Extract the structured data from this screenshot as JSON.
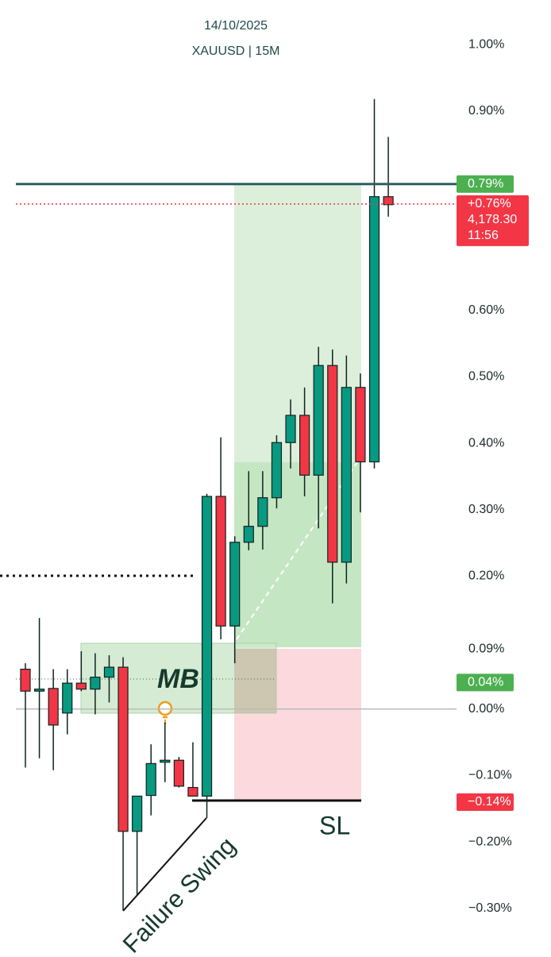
{
  "chart_data": {
    "type": "candlestick",
    "date": "14/10/2025",
    "title": "XAUUSD | 15M",
    "categories": [
      null,
      null,
      null,
      null,
      null,
      null,
      null,
      null,
      null,
      null,
      null,
      null,
      null,
      null,
      null,
      null,
      null,
      null,
      null,
      null,
      null,
      null,
      null,
      null,
      null,
      null,
      null
    ],
    "open": [
      0.06,
      0.027,
      0.031,
      -0.006,
      0.039,
      0.03,
      0.048,
      0.063,
      -0.184,
      -0.13,
      -0.08,
      -0.077,
      -0.118,
      -0.131,
      0.32,
      0.125,
      0.251,
      0.275,
      0.318,
      0.401,
      0.442,
      0.352,
      0.517,
      0.221,
      0.484,
      0.372,
      0.771
    ],
    "high": [
      0.069,
      0.137,
      0.06,
      0.06,
      0.087,
      0.084,
      0.081,
      0.078,
      -0.131,
      -0.053,
      -0.02,
      -0.072,
      -0.05,
      0.324,
      0.409,
      0.26,
      0.358,
      0.358,
      0.412,
      0.466,
      0.484,
      0.545,
      0.541,
      0.532,
      0.505,
      0.918,
      0.861
    ],
    "low": [
      -0.088,
      -0.074,
      -0.092,
      -0.038,
      0.027,
      -0.008,
      0.01,
      -0.303,
      -0.28,
      -0.16,
      -0.11,
      -0.118,
      -0.131,
      -0.164,
      0.105,
      0.069,
      0.239,
      0.24,
      0.302,
      0.362,
      0.32,
      0.272,
      0.159,
      0.189,
      0.296,
      0.362,
      0.741
    ],
    "close": [
      0.027,
      0.03,
      -0.024,
      0.039,
      0.03,
      0.048,
      0.063,
      -0.184,
      -0.131,
      -0.082,
      -0.077,
      -0.116,
      -0.131,
      0.32,
      0.125,
      0.251,
      0.275,
      0.318,
      0.401,
      0.442,
      0.352,
      0.517,
      0.221,
      0.484,
      0.372,
      0.771,
      0.759
    ],
    "up_color": "#089981",
    "down_color": "#f23645",
    "ylim": [
      -0.348,
      1.067
    ],
    "yticks": [
      {
        "value": 1,
        "label": "1.00%"
      },
      {
        "value": 0.9,
        "label": "0.90%"
      },
      {
        "value": 0.6,
        "label": "0.60%"
      },
      {
        "value": 0.5,
        "label": "0.50%"
      },
      {
        "value": 0.4,
        "label": "0.40%"
      },
      {
        "value": 0.3,
        "label": "0.30%"
      },
      {
        "value": 0.2,
        "label": "0.20%"
      },
      {
        "value": 0.09,
        "label": "0.09%"
      },
      {
        "value": 0,
        "label": "0.00%"
      },
      {
        "value": -0.1,
        "label": "−0.10%"
      },
      {
        "value": -0.2,
        "label": "−0.20%"
      },
      {
        "value": -0.3,
        "label": "−0.30%"
      }
    ],
    "zero_line": true,
    "levels": [
      {
        "value": 0.79,
        "label": "0.79%",
        "color": "#4caf50",
        "line": "solid",
        "line_color": "#2c5f5d"
      },
      {
        "value": 0.76,
        "label": "+0.76%",
        "price": "4,178.30",
        "countdown": "11:56",
        "color": "#f23645",
        "line": "dotted",
        "line_color": "#f23645"
      },
      {
        "value": 0.04,
        "label": "0.04%",
        "color": "#4caf50"
      },
      {
        "value": -0.14,
        "label": "−0.14%",
        "color": "#f23645"
      }
    ],
    "annotations": [
      "MB",
      "SL",
      "Failure Swing"
    ]
  }
}
